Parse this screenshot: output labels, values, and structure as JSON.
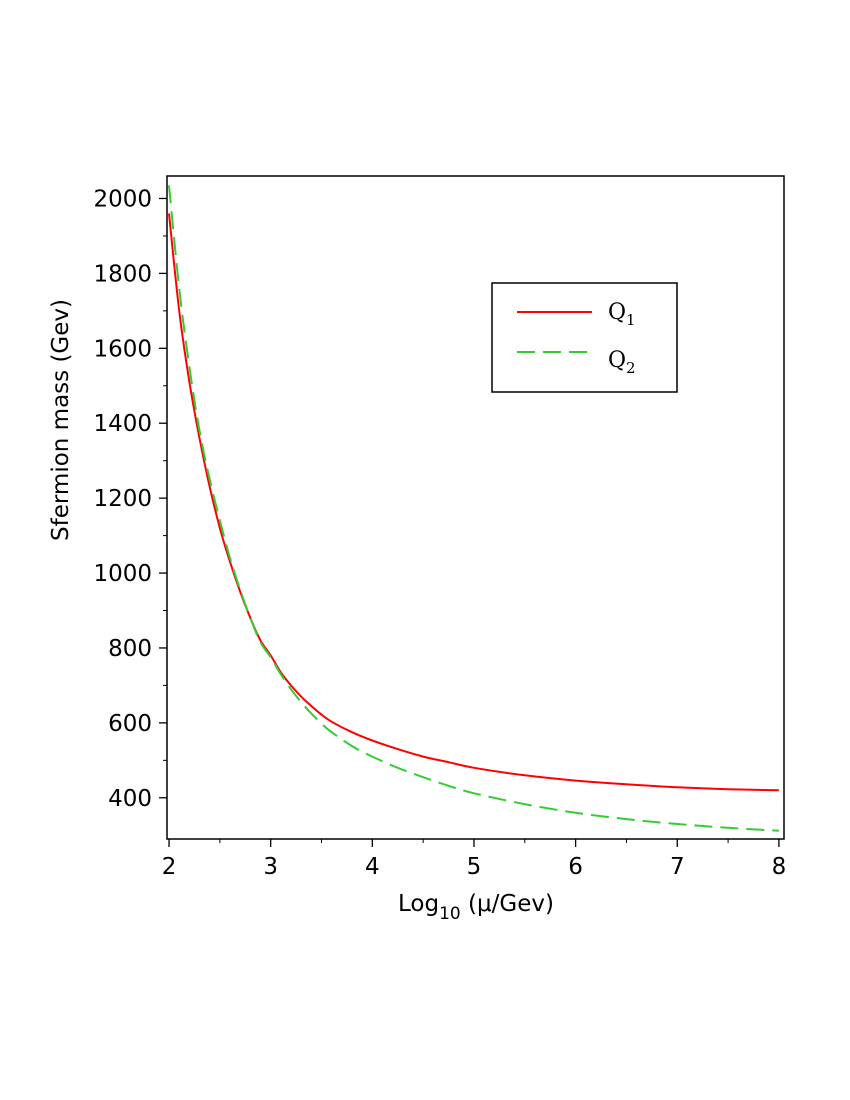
{
  "chart_data": {
    "type": "line",
    "xlabel": {
      "base": "Log",
      "sub": "10",
      "rest": " (μ/Gev)"
    },
    "ylabel": "Sfermion mass (Gev)",
    "xlim": [
      1.98,
      8.05
    ],
    "ylim": [
      290,
      2060
    ],
    "x_ticks": [
      2,
      3,
      4,
      5,
      6,
      7,
      8
    ],
    "y_ticks": [
      400,
      600,
      800,
      1000,
      1200,
      1400,
      1600,
      1800,
      2000
    ],
    "legend_position": "top-right",
    "grid": false,
    "series": [
      {
        "name": "Q1",
        "label_main": "Q",
        "label_sub": "1",
        "color": "#ff0000",
        "style": "solid",
        "x": [
          2.0,
          2.1,
          2.2,
          2.3,
          2.4,
          2.5,
          2.6,
          2.7,
          2.8,
          2.9,
          3.0,
          3.1,
          3.2,
          3.3,
          3.4,
          3.5,
          3.6,
          3.8,
          4.0,
          4.25,
          4.5,
          4.75,
          5.0,
          5.5,
          6.0,
          6.5,
          7.0,
          7.5,
          8.0
        ],
        "y": [
          1960,
          1700,
          1510,
          1360,
          1230,
          1120,
          1030,
          950,
          880,
          820,
          780,
          735,
          700,
          670,
          645,
          622,
          603,
          575,
          553,
          530,
          510,
          495,
          480,
          460,
          446,
          436,
          428,
          423,
          420
        ]
      },
      {
        "name": "Q2",
        "label_main": "Q",
        "label_sub": "2",
        "color": "#33cc33",
        "style": "dashed",
        "x": [
          2.0,
          2.1,
          2.2,
          2.3,
          2.4,
          2.5,
          2.6,
          2.7,
          2.8,
          2.9,
          3.0,
          3.1,
          3.2,
          3.3,
          3.4,
          3.5,
          3.6,
          3.8,
          4.0,
          4.25,
          4.5,
          4.75,
          5.0,
          5.5,
          6.0,
          6.5,
          7.0,
          7.5,
          8.0
        ],
        "y": [
          2035,
          1760,
          1550,
          1380,
          1250,
          1140,
          1040,
          955,
          880,
          815,
          775,
          730,
          690,
          655,
          625,
          598,
          575,
          538,
          510,
          480,
          455,
          432,
          412,
          383,
          360,
          343,
          330,
          320,
          312
        ]
      }
    ]
  }
}
